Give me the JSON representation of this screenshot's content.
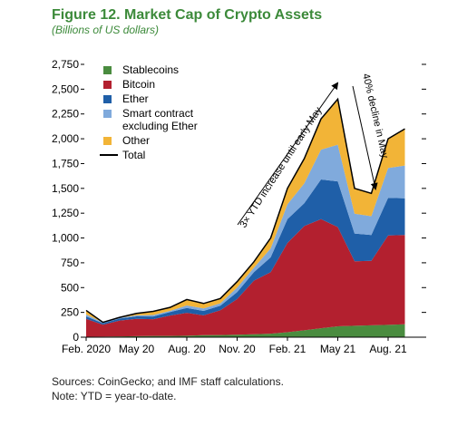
{
  "chart_data": {
    "type": "stacked_area",
    "title": "Figure 12. Market Cap of Crypto Assets",
    "subtitle": "(Billions of US dollars)",
    "categories": [
      "Feb. 2020",
      null,
      null,
      "May 20",
      null,
      null,
      "Aug. 20",
      null,
      null,
      "Nov. 20",
      null,
      null,
      "Feb. 21",
      null,
      null,
      "May 21",
      null,
      null,
      "Aug. 21",
      null
    ],
    "series": [
      {
        "name": "Stablecoins",
        "color": "#4a8c3f",
        "values": [
          5,
          6,
          8,
          10,
          12,
          13,
          15,
          20,
          22,
          25,
          30,
          35,
          50,
          70,
          90,
          110,
          115,
          120,
          125,
          130
        ]
      },
      {
        "name": "Bitcoin",
        "color": "#b3202f",
        "values": [
          180,
          120,
          160,
          175,
          170,
          205,
          230,
          200,
          250,
          360,
          540,
          620,
          900,
          1050,
          1100,
          1000,
          650,
          650,
          900,
          900
        ]
      },
      {
        "name": "Ether",
        "color": "#1f5fa8",
        "values": [
          25,
          15,
          20,
          25,
          27,
          35,
          50,
          45,
          45,
          70,
          85,
          150,
          240,
          230,
          400,
          460,
          280,
          260,
          380,
          370
        ]
      },
      {
        "name": "Smart contract excluding Ether",
        "color": "#80aadc",
        "values": [
          20,
          6,
          7,
          10,
          15,
          12,
          25,
          25,
          25,
          45,
          45,
          90,
          150,
          200,
          300,
          370,
          200,
          190,
          300,
          330
        ]
      },
      {
        "name": "Other",
        "color": "#f2b437",
        "values": [
          40,
          3,
          5,
          20,
          36,
          35,
          60,
          50,
          48,
          60,
          60,
          105,
          160,
          250,
          310,
          460,
          255,
          230,
          295,
          370
        ]
      },
      {
        "name": "Total",
        "color": "#000000",
        "line": true,
        "values": [
          270,
          150,
          200,
          240,
          260,
          300,
          380,
          340,
          390,
          560,
          760,
          1000,
          1500,
          1800,
          2200,
          2400,
          1500,
          1450,
          2000,
          2100
        ]
      }
    ],
    "ylim": [
      0,
      2750
    ],
    "yticks": [
      0,
      250,
      500,
      750,
      {
        "value": 1000,
        "label": "1,000"
      },
      {
        "value": 1250,
        "label": "1,250"
      },
      {
        "value": 1500,
        "label": "1,500"
      },
      {
        "value": 1750,
        "label": "1,750"
      },
      {
        "value": 2000,
        "label": "2,000"
      },
      {
        "value": 2250,
        "label": "2,250"
      },
      {
        "value": 2500,
        "label": "2,500"
      },
      {
        "value": 2750,
        "label": "2,750"
      }
    ],
    "annotations": [
      "3× YTD increase until early May",
      "40% decline in May"
    ],
    "sources": "Sources: CoinGecko; and IMF staff calculations.",
    "note": "Note: YTD = year-to-date."
  }
}
